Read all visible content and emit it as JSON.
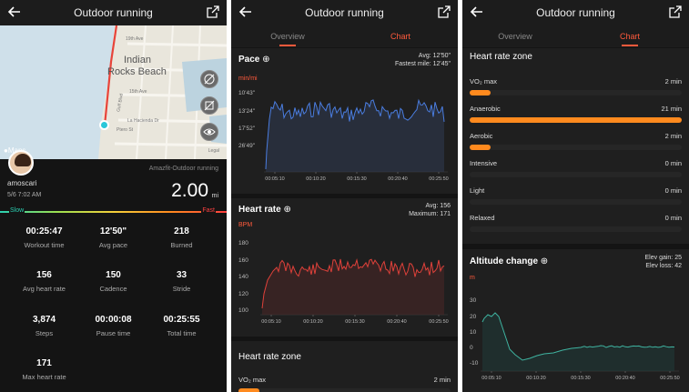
{
  "header": {
    "title": "Outdoor running"
  },
  "tabs": [
    {
      "label": "Overview"
    },
    {
      "label": "Chart"
    }
  ],
  "map": {
    "labels": [
      "Indian",
      "Rocks Beach",
      "19th Ave",
      "15th Ave",
      "Gulf Blvd",
      "La Hacienda Dr",
      "Ptero St"
    ],
    "attribution": "Maps",
    "legal": "Legal"
  },
  "profile": {
    "username": "amoscari",
    "datetime": "5/6 7:02 AM",
    "source": "Amazfit-Outdoor running"
  },
  "distance": {
    "value": "2.00",
    "unit": "mi"
  },
  "pace_scale": {
    "slow": "Slow",
    "fast": "Fast"
  },
  "stats": [
    {
      "value": "00:25:47",
      "label": "Workout time"
    },
    {
      "value": "12'50\"",
      "label": "Avg pace"
    },
    {
      "value": "218",
      "label": "Burned"
    },
    {
      "value": "156",
      "label": "Avg heart rate"
    },
    {
      "value": "150",
      "label": "Cadence"
    },
    {
      "value": "33",
      "label": "Stride"
    },
    {
      "value": "3,874",
      "label": "Steps"
    },
    {
      "value": "00:00:08",
      "label": "Pause time"
    },
    {
      "value": "00:25:55",
      "label": "Total time"
    },
    {
      "value": "171",
      "label": "Max heart rate"
    }
  ],
  "pace_chart": {
    "title": "Pace",
    "unit": "min/mi",
    "avg": "Avg: 12'50\"",
    "fastest": "Fastest mile: 12'45\"",
    "y_ticks": [
      "10'43\"",
      "13'24\"",
      "17'52\"",
      "26'49\""
    ],
    "x_ticks": [
      "00:05:10",
      "00:10:20",
      "00:15:30",
      "00:20:40",
      "00:25:50"
    ]
  },
  "hr_chart": {
    "title": "Heart rate",
    "unit": "BPM",
    "avg": "Avg: 156",
    "max": "Maximum: 171",
    "y_ticks": [
      "180",
      "160",
      "140",
      "120",
      "100"
    ],
    "x_ticks": [
      "00:05:10",
      "00:10:20",
      "00:15:30",
      "00:20:40",
      "00:25:50"
    ]
  },
  "hr_zone_title": "Heart rate zone",
  "hr_zones": [
    {
      "name": "VO₂ max",
      "time": "2 min",
      "fraction": 0.1
    },
    {
      "name": "Anaerobic",
      "time": "21 min",
      "fraction": 1.0
    },
    {
      "name": "Aerobic",
      "time": "2 min",
      "fraction": 0.1
    },
    {
      "name": "Intensive",
      "time": "0 min",
      "fraction": 0
    },
    {
      "name": "Light",
      "time": "0 min",
      "fraction": 0
    },
    {
      "name": "Relaxed",
      "time": "0 min",
      "fraction": 0
    }
  ],
  "altitude_chart": {
    "title": "Altitude change",
    "unit": "m",
    "gain": "Elev gain: 25",
    "loss": "Elev loss: 42",
    "y_ticks": [
      "30",
      "20",
      "10",
      "0",
      "-10"
    ],
    "x_ticks": [
      "00:05:10",
      "00:10:20",
      "00:15:30",
      "00:20:40",
      "00:25:50"
    ]
  },
  "colors": {
    "accent": "#ff5a3c",
    "zone_fill": "#ff8a1e",
    "route": "#e8443a",
    "pace_line": "#4a7de0",
    "hr_line": "#e0413a",
    "alt_line": "#3fb3a0"
  }
}
